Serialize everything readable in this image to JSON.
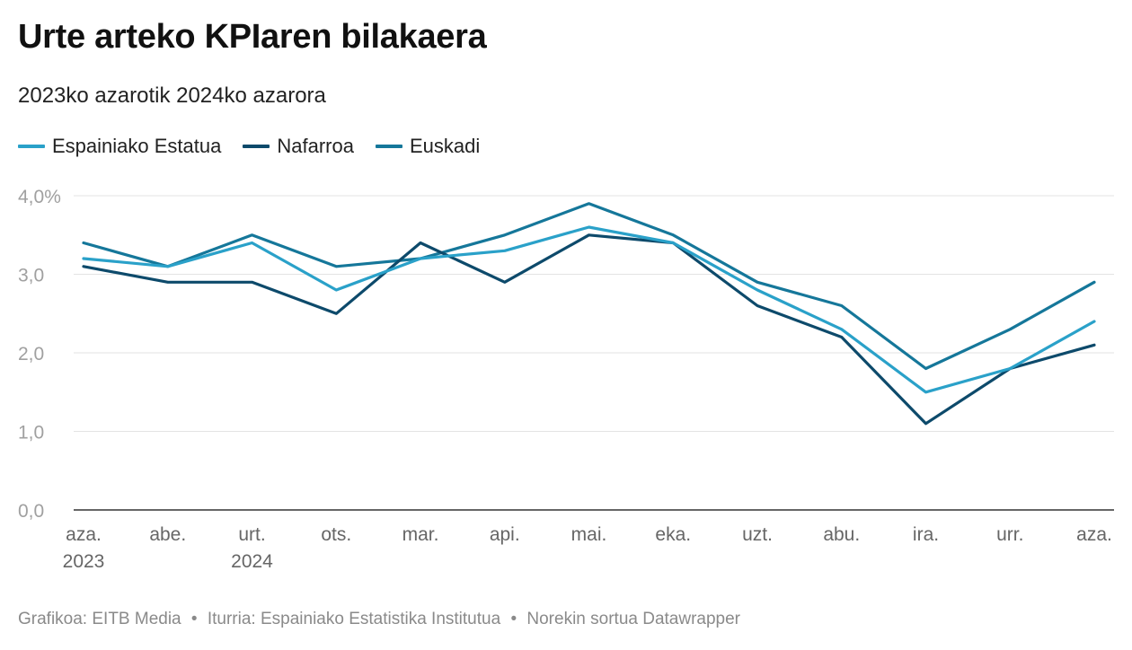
{
  "title": "Urte arteko KPIaren bilakaera",
  "subtitle": "2023ko azarotik 2024ko azarora",
  "footer": {
    "graphic": "Grafikoa: EITB Media",
    "source": "Iturria: Espainiako Estatistika Institutua",
    "made_with": "Norekin sortua Datawrapper",
    "separator": "•"
  },
  "chart_data": {
    "type": "line",
    "categories": [
      "aza.",
      "abe.",
      "urt.",
      "ots.",
      "mar.",
      "api.",
      "mai.",
      "eka.",
      "uzt.",
      "abu.",
      "ira.",
      "urr.",
      "aza."
    ],
    "category_years": [
      "2023",
      "",
      "2024",
      "",
      "",
      "",
      "",
      "",
      "",
      "",
      "",
      "",
      ""
    ],
    "ylim": [
      0,
      4
    ],
    "yticks": [
      "0,0",
      "1,0",
      "2,0",
      "3,0",
      "4,0%"
    ],
    "grid": true,
    "legend_position": "top-left",
    "series": [
      {
        "name": "Espainiako Estatua",
        "color": "#2aa1c9",
        "values": [
          3.2,
          3.1,
          3.4,
          2.8,
          3.2,
          3.3,
          3.6,
          3.4,
          2.8,
          2.3,
          1.5,
          1.8,
          2.4
        ]
      },
      {
        "name": "Nafarroa",
        "color": "#0d4a6b",
        "values": [
          3.1,
          2.9,
          2.9,
          2.5,
          3.4,
          2.9,
          3.5,
          3.4,
          2.6,
          2.2,
          1.1,
          1.8,
          2.1
        ]
      },
      {
        "name": "Euskadi",
        "color": "#15779a",
        "values": [
          3.4,
          3.1,
          3.5,
          3.1,
          3.2,
          3.5,
          3.9,
          3.5,
          2.9,
          2.6,
          1.8,
          2.3,
          2.9
        ]
      }
    ]
  }
}
